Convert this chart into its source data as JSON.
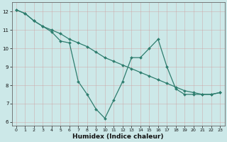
{
  "xlabel": "Humidex (Indice chaleur)",
  "bg_color": "#cce8e8",
  "grid_color": "#b0c8c8",
  "line_color": "#2e7d6e",
  "xlim": [
    -0.5,
    23.5
  ],
  "ylim": [
    5.8,
    12.5
  ],
  "yticks": [
    6,
    7,
    8,
    9,
    10,
    11,
    12
  ],
  "xticks": [
    0,
    1,
    2,
    3,
    4,
    5,
    6,
    7,
    8,
    9,
    10,
    11,
    12,
    13,
    14,
    15,
    16,
    17,
    18,
    19,
    20,
    21,
    22,
    23
  ],
  "line1_x": [
    0,
    1,
    2,
    3,
    4,
    5,
    6,
    7,
    8,
    9,
    10,
    11,
    12,
    13,
    14,
    15,
    16,
    17,
    18,
    19,
    20,
    21,
    22,
    23
  ],
  "line1_y": [
    12.1,
    11.9,
    11.5,
    11.2,
    11.0,
    10.8,
    10.5,
    10.3,
    10.1,
    9.8,
    9.5,
    9.3,
    9.1,
    8.9,
    8.7,
    8.5,
    8.3,
    8.1,
    7.9,
    7.7,
    7.6,
    7.5,
    7.5,
    7.6
  ],
  "line2_x": [
    0,
    1,
    2,
    3,
    4,
    5,
    6,
    7,
    8,
    9,
    10,
    11,
    12,
    13,
    14,
    15,
    16,
    17,
    18,
    19,
    20,
    21,
    22,
    23
  ],
  "line2_y": [
    12.1,
    11.9,
    11.5,
    11.2,
    10.9,
    10.4,
    10.3,
    8.2,
    7.5,
    6.7,
    6.2,
    7.2,
    8.2,
    9.5,
    9.5,
    10.0,
    10.5,
    9.0,
    7.8,
    7.5,
    7.5,
    7.5,
    7.5,
    7.6
  ],
  "xlabel_fontsize": 6.5,
  "tick_fontsize": 5.0
}
